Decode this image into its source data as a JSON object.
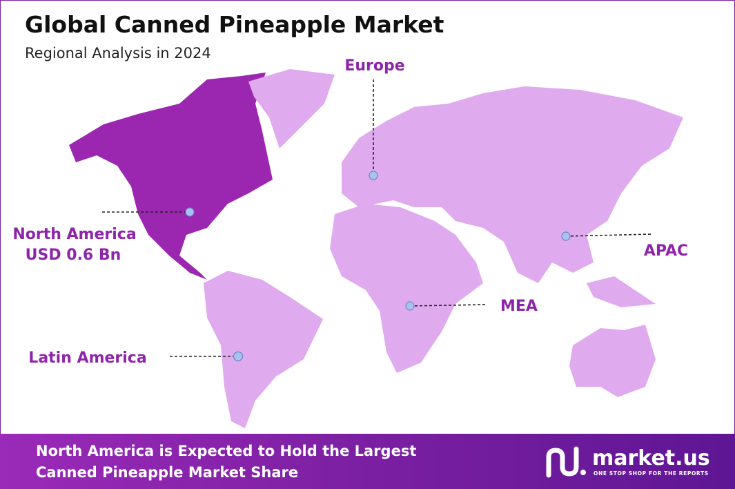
{
  "header": {
    "title": "Global Canned Pineapple Market",
    "subtitle": "Regional Analysis in 2024"
  },
  "regions": [
    {
      "name": "North America",
      "value": "USD 0.6 Bn"
    },
    {
      "name": "Europe"
    },
    {
      "name": "APAC"
    },
    {
      "name": "MEA"
    },
    {
      "name": "Latin America"
    }
  ],
  "footer": {
    "lines": [
      "North America is Expected to Hold the Largest",
      "Canned Pineapple Market Share"
    ]
  },
  "logo": {
    "name": "market.us",
    "tagline": "ONE STOP SHOP FOR THE REPORTS"
  }
}
